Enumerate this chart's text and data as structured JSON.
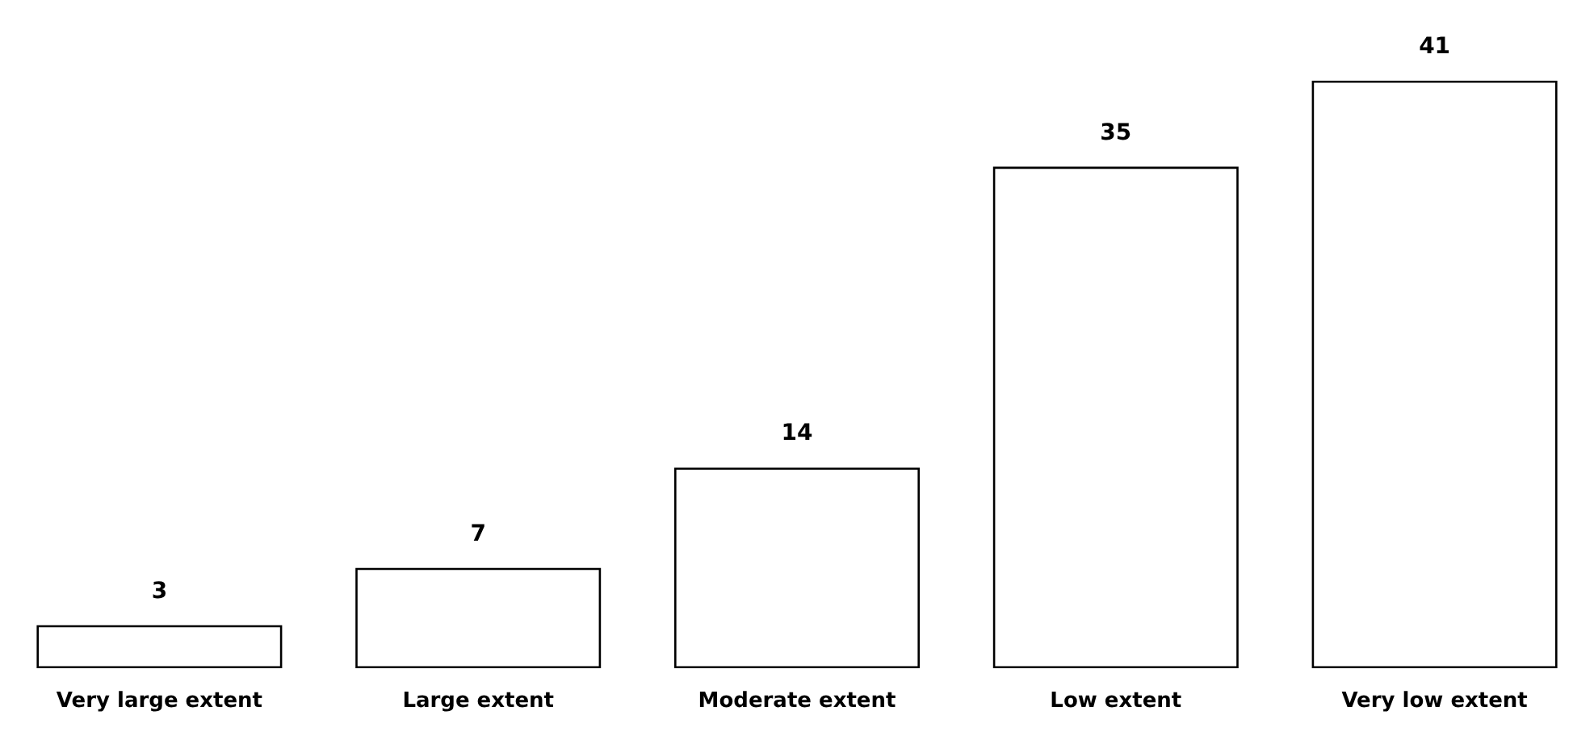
{
  "chart_data": {
    "type": "bar",
    "categories": [
      "Very large extent",
      "Large extent",
      "Moderate extent",
      "Low extent",
      "Very low extent"
    ],
    "values": [
      3,
      7,
      14,
      35,
      41
    ],
    "color": "#ffffff",
    "data_labels": true
  }
}
